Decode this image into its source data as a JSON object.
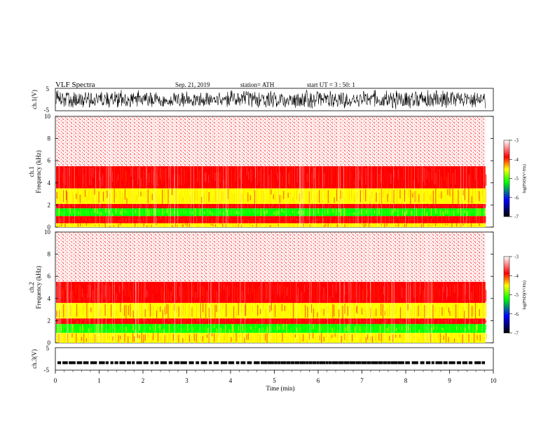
{
  "header": {
    "title": "VLF  Spectra",
    "date": "Sep. 21, 2019",
    "station": "station= ATH",
    "start": "start  UT  =    3  : 50: 1"
  },
  "chart_data": [
    {
      "type": "line",
      "panel": "ch1-waveform",
      "ylabel": "ch.1(V)",
      "ylim": [
        -5,
        5
      ],
      "yticks": [
        "5",
        "-5"
      ],
      "color": "#000000"
    },
    {
      "type": "heatmap",
      "panel": "ch1-spectrogram",
      "ylabel": "Frequency  (kHz)",
      "channel_label": "ch.1",
      "ylim": [
        0,
        10
      ],
      "yticks": [
        "0",
        "2",
        "4",
        "6",
        "8",
        "10"
      ],
      "bands": [
        {
          "from": 0,
          "to": 0.35,
          "level": "yellow"
        },
        {
          "from": 0.35,
          "to": 1.0,
          "level": "red"
        },
        {
          "from": 1.0,
          "to": 1.7,
          "level": "green"
        },
        {
          "from": 1.7,
          "to": 2.1,
          "level": "red"
        },
        {
          "from": 2.1,
          "to": 3.5,
          "level": "yellow"
        },
        {
          "from": 3.5,
          "to": 5.5,
          "level": "red"
        },
        {
          "from": 5.5,
          "to": 10,
          "level": "sparse-red"
        }
      ]
    },
    {
      "type": "heatmap",
      "panel": "ch2-spectrogram",
      "ylabel": "Frequency  (kHz)",
      "channel_label": "ch.2",
      "ylim": [
        0,
        10
      ],
      "yticks": [
        "0",
        "2",
        "4",
        "6",
        "8",
        "10"
      ],
      "bands": [
        {
          "from": 0,
          "to": 0.9,
          "level": "yellow"
        },
        {
          "from": 0.9,
          "to": 1.7,
          "level": "green"
        },
        {
          "from": 1.7,
          "to": 2.2,
          "level": "red"
        },
        {
          "from": 2.2,
          "to": 3.6,
          "level": "yellow"
        },
        {
          "from": 3.6,
          "to": 5.5,
          "level": "red"
        },
        {
          "from": 5.5,
          "to": 10,
          "level": "sparse-red"
        }
      ]
    },
    {
      "type": "line",
      "panel": "ch3-waveform",
      "ylabel": "ch.3(V)",
      "ylim": [
        -5,
        5
      ],
      "yticks": [
        "5",
        "-5"
      ],
      "level_value": -1.7,
      "color": "#000000"
    }
  ],
  "colorbar": {
    "label": "log(PSD)(V²/Hz)",
    "ticks": [
      "-3",
      "-4",
      "-5",
      "-6",
      "-7"
    ],
    "stops": [
      "#ffffff",
      "#ff0000",
      "#ffff00",
      "#00ff00",
      "#0000ff",
      "#000000"
    ]
  },
  "xaxis": {
    "label": "Time  (min)",
    "xlim": [
      0,
      10
    ],
    "data_end": 9.82,
    "ticks": [
      "0",
      "1",
      "2",
      "3",
      "4",
      "5",
      "6",
      "7",
      "8",
      "9",
      "10"
    ]
  }
}
